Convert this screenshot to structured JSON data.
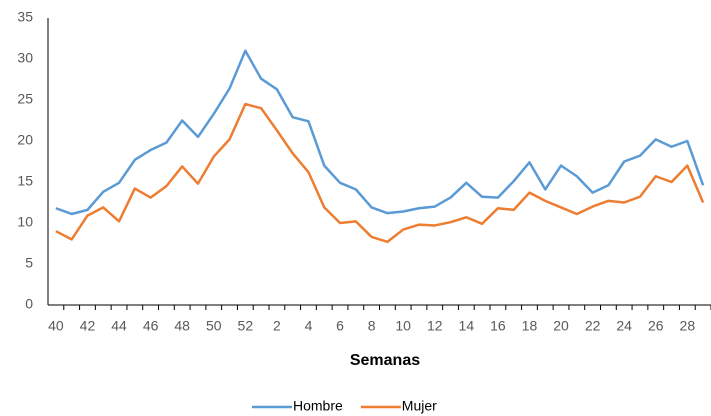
{
  "chart_data": {
    "type": "line",
    "x_label": "Semanas",
    "categories": [
      "40",
      null,
      "42",
      null,
      "44",
      null,
      "46",
      null,
      "48",
      null,
      "50",
      null,
      "52",
      null,
      "2",
      null,
      "4",
      null,
      "6",
      null,
      "8",
      null,
      "10",
      null,
      "12",
      null,
      "14",
      null,
      "16",
      null,
      "18",
      null,
      "20",
      null,
      "22",
      null,
      "24",
      null,
      "26",
      null,
      "28",
      null
    ],
    "series": [
      {
        "name": "Hombre",
        "color": "#5b9bd5",
        "values": [
          11.8,
          11.1,
          11.6,
          13.8,
          14.9,
          17.7,
          18.9,
          19.8,
          22.5,
          20.5,
          23.3,
          26.4,
          31.0,
          27.6,
          26.3,
          22.9,
          22.4,
          17.0,
          14.9,
          14.1,
          11.9,
          11.2,
          11.4,
          11.8,
          12.0,
          13.1,
          14.9,
          13.2,
          13.1,
          15.1,
          17.4,
          14.1,
          17.0,
          15.7,
          13.7,
          14.6,
          17.5,
          18.2,
          20.2,
          19.3,
          20.0,
          14.6
        ]
      },
      {
        "name": "Mujer",
        "color": "#ed7d31",
        "values": [
          9.0,
          8.0,
          10.9,
          11.9,
          10.2,
          14.2,
          13.1,
          14.5,
          16.9,
          14.8,
          18.1,
          20.2,
          24.5,
          24.0,
          21.3,
          18.5,
          16.2,
          11.9,
          10.0,
          10.2,
          8.3,
          7.7,
          9.2,
          9.8,
          9.7,
          10.1,
          10.7,
          9.9,
          11.8,
          11.6,
          13.7,
          12.7,
          11.9,
          11.1,
          12.0,
          12.7,
          12.5,
          13.2,
          15.7,
          15.0,
          17.0,
          12.5
        ]
      }
    ],
    "ylim": [
      0,
      35
    ],
    "yticks": [
      0,
      5,
      10,
      15,
      20,
      25,
      30,
      35
    ],
    "grid": false,
    "legend": "bottom"
  }
}
